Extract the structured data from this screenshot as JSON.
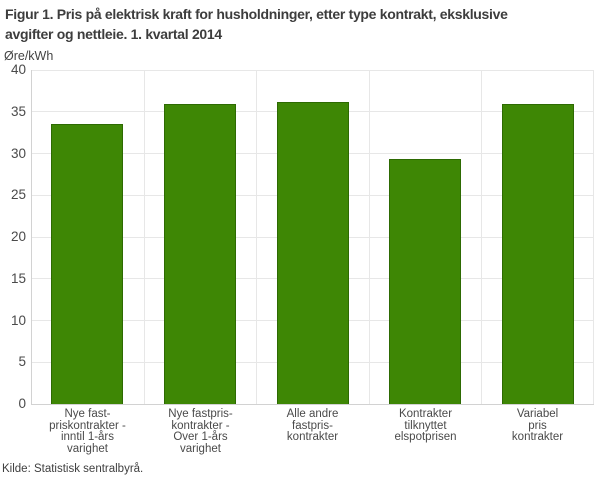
{
  "title_lines": [
    "Figur 1. Pris på elektrisk kraft for husholdninger, etter type kontrakt, eksklusive",
    "avgifter og nettleie. 1. kvartal 2014"
  ],
  "y_unit": "Øre/kWh",
  "source": "Kilde: Statistisk sentralbyrå.",
  "colors": {
    "bar_fill": "#3e8705",
    "bar_border": "#2d6a02",
    "gridline": "#e7e7e7",
    "axis_line": "#d2d2d2",
    "title_text": "#3d3d3d",
    "tick_text": "#4a4a4a"
  },
  "chart_data": {
    "type": "bar",
    "title": "Figur 1. Pris på elektrisk kraft for husholdninger, etter type kontrakt, eksklusive avgifter og nettleie. 1. kvartal 2014",
    "xlabel": "",
    "ylabel": "Øre/kWh",
    "ylim": [
      0,
      40
    ],
    "yticks": [
      0,
      5,
      10,
      15,
      20,
      25,
      30,
      35,
      40
    ],
    "grid": "horizontal gridlines at every ytick plus vertical category separators",
    "legend": "none",
    "categories": [
      "Nye fast-priskontrakter - inntil 1-års varighet",
      "Nye fastpris-kontrakter - Over 1-års varighet",
      "Alle andre fastpris-kontrakter",
      "Kontrakter tilknyttet elspotprisen",
      "Variabel pris kontrakter"
    ],
    "category_lines": [
      [
        "Nye fast-",
        "priskontrakter -",
        "inntil 1-års",
        "varighet"
      ],
      [
        "Nye fastpris-",
        "kontrakter -",
        "Over 1-års",
        "varighet"
      ],
      [
        "Alle andre",
        "fastpris-",
        "kontrakter"
      ],
      [
        "Kontrakter",
        "tilknyttet",
        "elspotprisen"
      ],
      [
        "Variabel",
        "pris",
        "kontrakter"
      ]
    ],
    "values": [
      33.5,
      35.9,
      36.2,
      29.4,
      35.9
    ],
    "source": "Kilde: Statistisk sentralbyrå."
  }
}
